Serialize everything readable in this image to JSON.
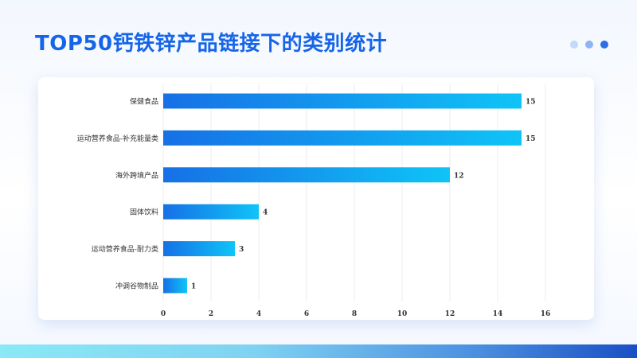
{
  "header": {
    "title": "TOP50钙铁锌产品链接下的类别统计",
    "indicator_dots": [
      {
        "name": "dot-1",
        "color": "#c4d8f8"
      },
      {
        "name": "dot-2",
        "color": "#8fb4f2"
      },
      {
        "name": "dot-3",
        "color": "#2f6fe6"
      }
    ]
  },
  "colors": {
    "title": "#1565e8",
    "bar_start": "#1670e6",
    "bar_end": "#0fc4f7",
    "grid": "#eceef2",
    "label": "#333333"
  },
  "chart_data": {
    "type": "bar",
    "orientation": "horizontal",
    "categories": [
      "保健食品",
      "运动营养食品-补充能量类",
      "海外跨境产品",
      "固体饮料",
      "运动营养食品-耐力类",
      "冲调谷物制品"
    ],
    "values": [
      15,
      15,
      12,
      4,
      3,
      1
    ],
    "data_labels": [
      "15",
      "15",
      "12",
      "4",
      "3",
      "1"
    ],
    "xlim": [
      0,
      16
    ],
    "xticks": [
      0,
      2,
      4,
      6,
      8,
      10,
      12,
      14,
      16
    ],
    "title": "",
    "xlabel": "",
    "ylabel": "",
    "grid": true
  }
}
